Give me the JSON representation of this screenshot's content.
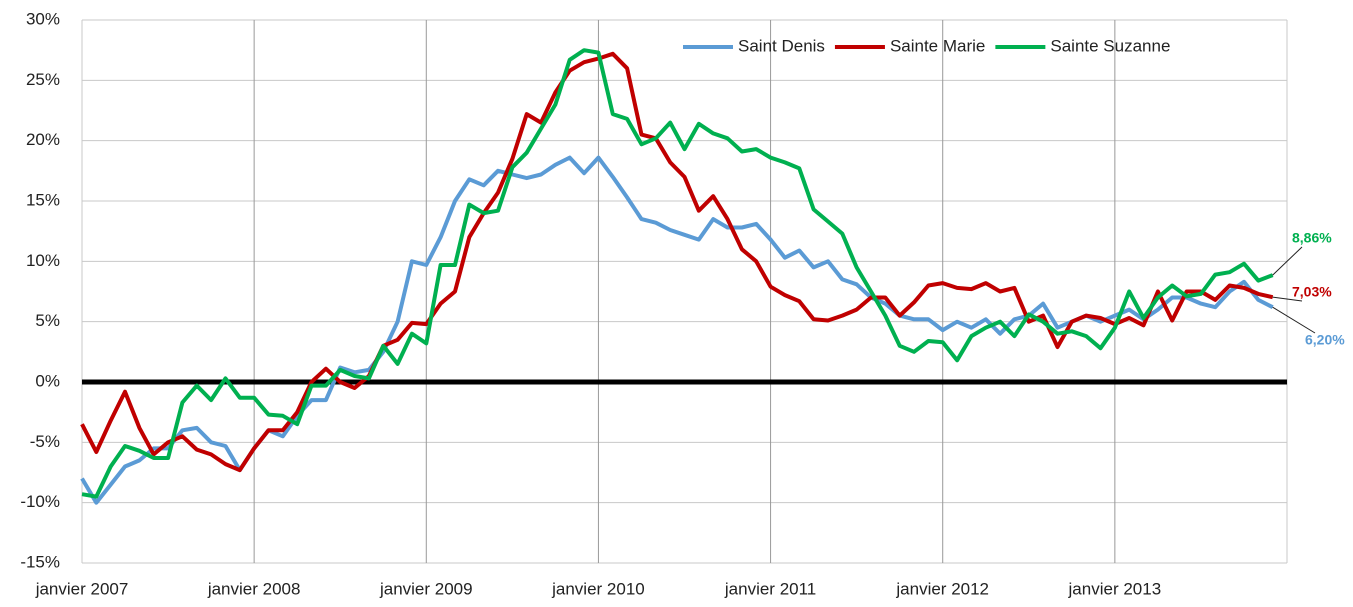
{
  "chart_data": {
    "type": "line",
    "categories": [
      "janvier 2007",
      null,
      null,
      null,
      null,
      null,
      null,
      null,
      null,
      null,
      null,
      null,
      "janvier 2008",
      null,
      null,
      null,
      null,
      null,
      null,
      null,
      null,
      null,
      null,
      null,
      "janvier 2009",
      null,
      null,
      null,
      null,
      null,
      null,
      null,
      null,
      null,
      null,
      null,
      "janvier 2010",
      null,
      null,
      null,
      null,
      null,
      null,
      null,
      null,
      null,
      null,
      null,
      "janvier 2011",
      null,
      null,
      null,
      null,
      null,
      null,
      null,
      null,
      null,
      null,
      null,
      "janvier 2012",
      null,
      null,
      null,
      null,
      null,
      null,
      null,
      null,
      null,
      null,
      null,
      "janvier 2013",
      null,
      null,
      null,
      null,
      null,
      null,
      null,
      null,
      null,
      null,
      null
    ],
    "series": [
      {
        "name": "Saint Denis",
        "color": "#5b9bd5",
        "values": [
          -8,
          -10,
          -8.5,
          -7,
          -6.5,
          -5.5,
          -5.5,
          -4,
          -3.8,
          -5,
          -5.3,
          -7.3,
          -5.5,
          -4,
          -4.5,
          -2.8,
          -1.5,
          -1.5,
          1.2,
          0.8,
          1,
          2.5,
          5,
          10,
          9.7,
          12,
          15,
          16.8,
          16.3,
          17.5,
          17.2,
          16.9,
          17.2,
          18,
          18.6,
          17.3,
          18.6,
          17,
          15.3,
          13.5,
          13.2,
          12.6,
          12.2,
          11.8,
          13.5,
          12.8,
          12.8,
          13.1,
          11.8,
          10.3,
          10.9,
          9.5,
          10,
          8.5,
          8.1,
          7,
          6.5,
          5.5,
          5.2,
          5.2,
          4.3,
          5,
          4.5,
          5.2,
          4,
          5.2,
          5.5,
          6.5,
          4.5,
          5,
          5.5,
          5,
          5.5,
          6,
          5.2,
          6,
          7,
          7,
          6.5,
          6.2,
          7.5,
          8.3,
          6.8,
          6.2
        ],
        "value_labels": [
          null,
          null,
          null,
          null,
          null,
          null,
          null,
          null,
          null,
          null,
          null,
          null,
          null,
          null,
          null,
          null,
          null,
          null,
          null,
          null,
          null,
          null,
          null,
          null,
          null,
          null,
          null,
          null,
          null,
          null,
          null,
          null,
          null,
          null,
          null,
          null,
          null,
          null,
          null,
          null,
          null,
          null,
          null,
          null,
          null,
          null,
          null,
          null,
          null,
          null,
          null,
          null,
          null,
          null,
          null,
          null,
          null,
          null,
          null,
          null,
          null,
          null,
          null,
          null,
          null,
          null,
          null,
          null,
          null,
          null,
          null,
          null,
          null,
          null,
          null,
          null,
          null,
          null,
          null,
          null,
          null,
          null,
          null,
          "6,20%"
        ]
      },
      {
        "name": "Sainte Marie",
        "color": "#c00000",
        "values": [
          -3.5,
          -5.8,
          -3.2,
          -0.8,
          -3.8,
          -6,
          -5,
          -4.5,
          -5.6,
          -6,
          -6.8,
          -7.3,
          -5.5,
          -4,
          -4,
          -2.5,
          0,
          1.1,
          0,
          -0.5,
          0.5,
          3,
          3.5,
          4.9,
          4.8,
          6.5,
          7.5,
          12,
          14,
          15.7,
          18.5,
          22.2,
          21.5,
          24,
          25.8,
          26.5,
          26.8,
          27.2,
          26,
          20.5,
          20.2,
          18.2,
          17,
          14.2,
          15.4,
          13.5,
          11,
          10,
          7.9,
          7.2,
          6.7,
          5.2,
          5.1,
          5.5,
          6,
          7,
          7,
          5.5,
          6.6,
          8,
          8.2,
          7.8,
          7.7,
          8.2,
          7.5,
          7.8,
          5,
          5.5,
          2.9,
          5,
          5.5,
          5.3,
          4.8,
          5.3,
          4.7,
          7.5,
          5.1,
          7.5,
          7.5,
          6.8,
          8,
          7.8,
          7.3,
          7.03
        ],
        "value_labels": [
          null,
          null,
          null,
          null,
          null,
          null,
          null,
          null,
          null,
          null,
          null,
          null,
          null,
          null,
          null,
          null,
          null,
          null,
          null,
          null,
          null,
          null,
          null,
          null,
          null,
          null,
          null,
          null,
          null,
          null,
          null,
          null,
          null,
          null,
          null,
          null,
          null,
          null,
          null,
          null,
          null,
          null,
          null,
          null,
          null,
          null,
          null,
          null,
          null,
          null,
          null,
          null,
          null,
          null,
          null,
          null,
          null,
          null,
          null,
          null,
          null,
          null,
          null,
          null,
          null,
          null,
          null,
          null,
          null,
          null,
          null,
          null,
          null,
          null,
          null,
          null,
          null,
          null,
          null,
          null,
          null,
          null,
          null,
          "7,03%"
        ]
      },
      {
        "name": "Sainte Suzanne",
        "color": "#00b050",
        "values": [
          -9.3,
          -9.5,
          -7,
          -5.3,
          -5.7,
          -6.3,
          -6.3,
          -1.7,
          -0.3,
          -1.5,
          0.3,
          -1.3,
          -1.3,
          -2.7,
          -2.8,
          -3.5,
          -0.3,
          -0.3,
          1,
          0.5,
          0.3,
          3,
          1.5,
          4,
          3.2,
          9.7,
          9.7,
          14.7,
          14,
          14.2,
          17.8,
          19,
          21,
          23,
          26.7,
          27.5,
          27.3,
          22.2,
          21.8,
          19.7,
          20.2,
          21.5,
          19.3,
          21.4,
          20.6,
          20.2,
          19.1,
          19.3,
          18.6,
          18.2,
          17.7,
          14.3,
          13.3,
          12.3,
          9.5,
          7.5,
          5.5,
          3,
          2.5,
          3.4,
          3.3,
          1.8,
          3.8,
          4.5,
          5,
          3.8,
          5.6,
          5,
          4,
          4.2,
          3.8,
          2.8,
          4.5,
          7.5,
          5.3,
          7,
          8,
          7.1,
          7.3,
          8.9,
          9.1,
          9.8,
          8.4,
          8.86
        ],
        "value_labels": [
          null,
          null,
          null,
          null,
          null,
          null,
          null,
          null,
          null,
          null,
          null,
          null,
          null,
          null,
          null,
          null,
          null,
          null,
          null,
          null,
          null,
          null,
          null,
          null,
          null,
          null,
          null,
          null,
          null,
          null,
          null,
          null,
          null,
          null,
          null,
          null,
          null,
          null,
          null,
          null,
          null,
          null,
          null,
          null,
          null,
          null,
          null,
          null,
          null,
          null,
          null,
          null,
          null,
          null,
          null,
          null,
          null,
          null,
          null,
          null,
          null,
          null,
          null,
          null,
          null,
          null,
          null,
          null,
          null,
          null,
          null,
          null,
          null,
          null,
          null,
          null,
          null,
          null,
          null,
          null,
          null,
          null,
          null,
          "8,86%"
        ]
      }
    ],
    "ylim": [
      -15,
      30
    ],
    "yticks": [
      {
        "value": -15,
        "label": "-15%"
      },
      {
        "value": -10,
        "label": "-10%"
      },
      {
        "value": -5,
        "label": "-5%"
      },
      {
        "value": 0,
        "label": "0%"
      },
      {
        "value": 5,
        "label": "5%"
      },
      {
        "value": 10,
        "label": "10%"
      },
      {
        "value": 15,
        "label": "15%"
      },
      {
        "value": 20,
        "label": "20%"
      },
      {
        "value": 25,
        "label": "25%"
      },
      {
        "value": 30,
        "label": "30%"
      }
    ],
    "grid": true,
    "legend": "top-right"
  }
}
